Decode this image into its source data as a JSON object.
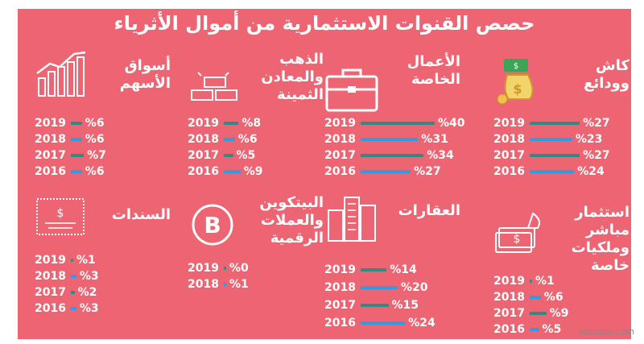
{
  "title": "حصص القنوات الاستثمارية من أموال الأثرياء",
  "credit": "alqabas.com",
  "colors": {
    "background": "#ed6472",
    "bar_teal": "#2e8b87",
    "bar_blue": "#2f9be0",
    "text": "#ffffff"
  },
  "chart_data": {
    "type": "bar",
    "title": "حصص القنوات الاستثمارية من أموال الأثرياء",
    "unit": "%",
    "panels": [
      {
        "name": "كاش\nوودائع",
        "icon": "money-bag-icon",
        "categories": [
          "2019",
          "2018",
          "2017",
          "2016"
        ],
        "values": [
          27,
          23,
          27,
          24
        ],
        "labels": [
          "%27",
          "%23",
          "%27",
          "%24"
        ]
      },
      {
        "name": "الأعمال\nالخاصة",
        "icon": "briefcase-icon",
        "categories": [
          "2019",
          "2018",
          "2017",
          "2016"
        ],
        "values": [
          40,
          31,
          34,
          27
        ],
        "labels": [
          "%40",
          "%31",
          "%34",
          "%27"
        ]
      },
      {
        "name": "الذهب\nوالمعادن\nالثمينة",
        "icon": "gold-bars-icon",
        "categories": [
          "2019",
          "2018",
          "2017",
          "2016"
        ],
        "values": [
          8,
          6,
          5,
          9
        ],
        "labels": [
          "%8",
          "%6",
          "%5",
          "%9"
        ]
      },
      {
        "name": "أسواق\nالأسهم",
        "icon": "stock-chart-icon",
        "categories": [
          "2019",
          "2018",
          "2017",
          "2016"
        ],
        "values": [
          6,
          6,
          7,
          6
        ],
        "labels": [
          "%6",
          "%6",
          "%7",
          "%6"
        ]
      },
      {
        "name": "استثمار مباشر\nوملكيات\nخاصة",
        "icon": "cash-stack-icon",
        "categories": [
          "2019",
          "2018",
          "2017",
          "2016"
        ],
        "values": [
          1,
          6,
          9,
          5
        ],
        "labels": [
          "%1",
          "%6",
          "%9",
          "%5"
        ]
      },
      {
        "name": "العقارات",
        "icon": "building-icon",
        "categories": [
          "2019",
          "2018",
          "2017",
          "2016"
        ],
        "values": [
          14,
          20,
          15,
          24
        ],
        "labels": [
          "%14",
          "%20",
          "%15",
          "%24"
        ]
      },
      {
        "name": "البيتكوين\nوالعملات\nالرقمية",
        "icon": "bitcoin-icon",
        "categories": [
          "2019",
          "2018"
        ],
        "values": [
          0,
          1
        ],
        "labels": [
          "%0",
          "%1"
        ]
      },
      {
        "name": "السندات",
        "icon": "bond-certificate-icon",
        "categories": [
          "2019",
          "2018",
          "2017",
          "2016"
        ],
        "values": [
          1,
          3,
          2,
          3
        ],
        "labels": [
          "%1",
          "%3",
          "%2",
          "%3"
        ]
      }
    ]
  }
}
